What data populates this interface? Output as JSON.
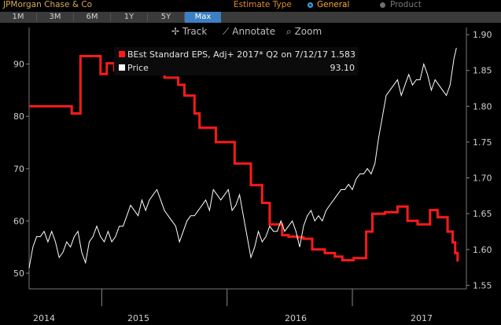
{
  "header": {
    "company": "JPMorgan Chase & Co",
    "estimate_type_label": "Estimate Type",
    "options": [
      {
        "label": "General",
        "selected": true
      },
      {
        "label": "Product",
        "selected": false
      }
    ]
  },
  "tabs": [
    {
      "label": "1M",
      "active": false
    },
    {
      "label": "3M",
      "active": false
    },
    {
      "label": "6M",
      "active": false
    },
    {
      "label": "1Y",
      "active": false
    },
    {
      "label": "5Y",
      "active": false
    },
    {
      "label": "Max",
      "active": true
    }
  ],
  "toolbar": {
    "track": "Track",
    "annotate": "Annotate",
    "zoom": "Zoom"
  },
  "legend": {
    "eps_label": "BEst Standard EPS, Adj+ 2017* Q2 on 7/12/17 1.583",
    "price_label": "Price",
    "price_value": "93.10"
  },
  "colors": {
    "eps": "#ff1a1a",
    "price": "#ffffff",
    "accent_tab": "#3c7fc2",
    "header_orange": "#e08a2a"
  },
  "chart_data": {
    "type": "line",
    "x_labels": [
      "2014",
      "2015",
      "2016",
      "2017"
    ],
    "left_axis": {
      "ticks": [
        50,
        60,
        70,
        80,
        90
      ],
      "range": [
        47,
        97
      ]
    },
    "right_axis": {
      "ticks": [
        "1.55",
        "1.60",
        "1.65",
        "1.70",
        "1.75",
        "1.80",
        "1.85",
        "1.90"
      ],
      "range": [
        1.545,
        1.91
      ]
    },
    "series": [
      {
        "name": "BEst Standard EPS, Adj+ 2017* Q2",
        "axis": "right",
        "step": true,
        "x": [
          2013.86,
          2014.2,
          2014.27,
          2014.38,
          2014.43,
          2014.48,
          2014.54,
          2014.6,
          2014.73,
          2014.94,
          2015.05,
          2015.1,
          2015.18,
          2015.22,
          2015.35,
          2015.5,
          2015.63,
          2015.72,
          2015.78,
          2015.88,
          2015.93,
          2016.0,
          2016.05,
          2016.12,
          2016.22,
          2016.3,
          2016.36,
          2016.45,
          2016.55,
          2016.6,
          2016.7,
          2016.8,
          2016.88,
          2016.96,
          2017.06,
          2017.12,
          2017.2,
          2017.24,
          2017.26,
          2017.28
        ],
        "values": [
          1.8,
          1.79,
          1.87,
          1.87,
          1.845,
          1.86,
          1.85,
          1.855,
          1.845,
          1.84,
          1.83,
          1.815,
          1.79,
          1.77,
          1.75,
          1.72,
          1.69,
          1.665,
          1.635,
          1.62,
          1.618,
          1.617,
          1.615,
          1.6,
          1.595,
          1.59,
          1.585,
          1.588,
          1.625,
          1.65,
          1.652,
          1.66,
          1.64,
          1.635,
          1.655,
          1.645,
          1.625,
          1.61,
          1.595,
          1.583
        ]
      },
      {
        "name": "Price",
        "axis": "left",
        "x": [
          2013.86,
          2013.89,
          2013.92,
          2013.95,
          2013.98,
          2014.01,
          2014.04,
          2014.07,
          2014.1,
          2014.13,
          2014.16,
          2014.19,
          2014.22,
          2014.25,
          2014.28,
          2014.31,
          2014.34,
          2014.37,
          2014.4,
          2014.43,
          2014.46,
          2014.49,
          2014.52,
          2014.55,
          2014.58,
          2014.61,
          2014.64,
          2014.67,
          2014.7,
          2014.73,
          2014.76,
          2014.79,
          2014.82,
          2014.85,
          2014.88,
          2014.91,
          2014.94,
          2014.97,
          2015.0,
          2015.03,
          2015.06,
          2015.09,
          2015.12,
          2015.15,
          2015.18,
          2015.21,
          2015.24,
          2015.27,
          2015.3,
          2015.33,
          2015.36,
          2015.39,
          2015.42,
          2015.45,
          2015.48,
          2015.51,
          2015.54,
          2015.57,
          2015.6,
          2015.63,
          2015.66,
          2015.69,
          2015.72,
          2015.75,
          2015.78,
          2015.81,
          2015.84,
          2015.87,
          2015.9,
          2015.93,
          2015.96,
          2015.99,
          2016.02,
          2016.05,
          2016.08,
          2016.11,
          2016.14,
          2016.17,
          2016.2,
          2016.23,
          2016.26,
          2016.29,
          2016.32,
          2016.35,
          2016.38,
          2016.41,
          2016.44,
          2016.47,
          2016.5,
          2016.53,
          2016.56,
          2016.59,
          2016.62,
          2016.65,
          2016.68,
          2016.71,
          2016.74,
          2016.77,
          2016.8,
          2016.83,
          2016.86,
          2016.89,
          2016.92,
          2016.95,
          2016.98,
          2017.01,
          2017.04,
          2017.07,
          2017.1,
          2017.13,
          2017.16,
          2017.19,
          2017.22,
          2017.25,
          2017.27
        ],
        "values": [
          51.0,
          55.0,
          57.0,
          57.0,
          58.0,
          56.0,
          58.0,
          56.0,
          53.0,
          54.0,
          56.0,
          55.0,
          57.0,
          58.0,
          54.0,
          52.0,
          56.0,
          57.0,
          59.0,
          57.0,
          56.0,
          58.0,
          56.0,
          57.0,
          59.0,
          59.0,
          61.0,
          63.0,
          62.0,
          61.0,
          64.0,
          62.0,
          64.0,
          65.0,
          66.0,
          64.0,
          62.0,
          61.0,
          60.0,
          59.0,
          56.0,
          58.0,
          60.0,
          61.0,
          61.0,
          62.0,
          63.0,
          64.0,
          62.0,
          66.0,
          65.0,
          64.0,
          65.0,
          66.0,
          62.0,
          63.0,
          65.0,
          61.0,
          57.0,
          53.0,
          55.0,
          58.0,
          56.0,
          57.0,
          59.0,
          58.0,
          58.0,
          60.0,
          58.0,
          59.0,
          60.0,
          58.0,
          55.0,
          59.0,
          61.0,
          62.0,
          60.0,
          61.0,
          60.0,
          62.0,
          63.0,
          64.0,
          65.0,
          66.0,
          66.0,
          67.0,
          66.0,
          68.0,
          69.0,
          69.0,
          70.0,
          69.0,
          71.0,
          76.0,
          80.0,
          84.0,
          85.0,
          86.0,
          87.0,
          84.0,
          86.0,
          88.0,
          86.0,
          87.0,
          87.0,
          90.0,
          88.0,
          85.0,
          87.0,
          86.0,
          85.0,
          84.0,
          86.0,
          91.0,
          93.1
        ]
      }
    ]
  }
}
